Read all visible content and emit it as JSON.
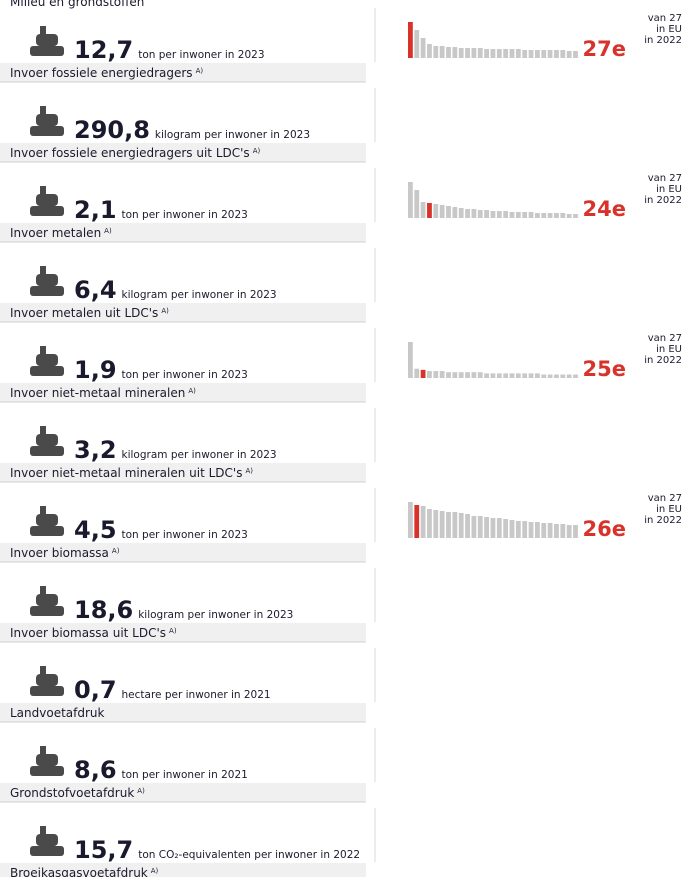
{
  "header": {
    "title": "Milieu en grondstoffen"
  },
  "rows": [
    {
      "value": "12,7",
      "unit": "ton per inwoner in 2023",
      "label": "Invoer fossiele energiedragers",
      "note": "A)",
      "chart": {
        "rank": "27e",
        "context": [
          "van 27",
          "in EU",
          "in 2022"
        ],
        "highlight": 0,
        "values": [
          36,
          28,
          20,
          14,
          12,
          12,
          11,
          11,
          10,
          10,
          10,
          10,
          9,
          9,
          9,
          9,
          9,
          9,
          8,
          8,
          8,
          8,
          8,
          8,
          8,
          7,
          7
        ]
      }
    },
    {
      "value": "290,8",
      "unit": "kilogram per inwoner in 2023",
      "label": "Invoer fossiele energiedragers uit LDC's",
      "note": "A)"
    },
    {
      "value": "2,1",
      "unit": "ton per inwoner in 2023",
      "label": "Invoer metalen",
      "note": "A)",
      "chart": {
        "rank": "24e",
        "context": [
          "van 27",
          "in EU",
          "in 2022"
        ],
        "highlight": 3,
        "values": [
          36,
          28,
          16,
          15,
          14,
          13,
          12,
          11,
          10,
          9,
          9,
          8,
          8,
          7,
          7,
          7,
          6,
          6,
          6,
          6,
          5,
          5,
          5,
          5,
          5,
          4,
          4
        ]
      }
    },
    {
      "value": "6,4",
      "unit": "kilogram per inwoner in 2023",
      "label": "Invoer metalen uit LDC's",
      "note": "A)"
    },
    {
      "value": "1,9",
      "unit": "ton per inwoner in 2023",
      "label": "Invoer niet-metaal mineralen",
      "note": "A)",
      "chart": {
        "rank": "25e",
        "context": [
          "van 27",
          "in EU",
          "in 2022"
        ],
        "highlight": 2,
        "values": [
          31,
          8,
          7,
          6,
          6,
          6,
          5,
          5,
          5,
          5,
          5,
          5,
          4,
          4,
          4,
          4,
          4,
          4,
          4,
          4,
          4,
          3,
          3,
          3,
          3,
          3,
          3
        ]
      }
    },
    {
      "value": "3,2",
      "unit": "kilogram per inwoner in 2023",
      "label": "Invoer niet-metaal mineralen uit LDC's",
      "note": "A)"
    },
    {
      "value": "4,5",
      "unit": "ton per inwoner in 2023",
      "label": "Invoer biomassa",
      "note": "A)",
      "chart": {
        "rank": "26e",
        "context": [
          "van 27",
          "in EU",
          "in 2022"
        ],
        "highlight": 1,
        "values": [
          36,
          33,
          32,
          29,
          28,
          27,
          26,
          26,
          25,
          24,
          22,
          22,
          21,
          20,
          20,
          19,
          18,
          17,
          17,
          16,
          16,
          15,
          15,
          14,
          14,
          13,
          13
        ]
      }
    },
    {
      "value": "18,6",
      "unit": "kilogram per inwoner in 2023",
      "label": "Invoer biomassa uit LDC's",
      "note": "A)"
    },
    {
      "value": "0,7",
      "unit": "hectare per inwoner in 2021",
      "label": "Landvoetafdruk"
    },
    {
      "value": "8,6",
      "unit": "ton per inwoner in 2021",
      "label": "Grondstofvoetafdruk",
      "note": "A)"
    },
    {
      "value": "15,7",
      "unit": "ton CO₂-equivalenten per inwoner in 2022",
      "label": "Broeikasgasvoetafdruk",
      "note": "A)"
    }
  ]
}
